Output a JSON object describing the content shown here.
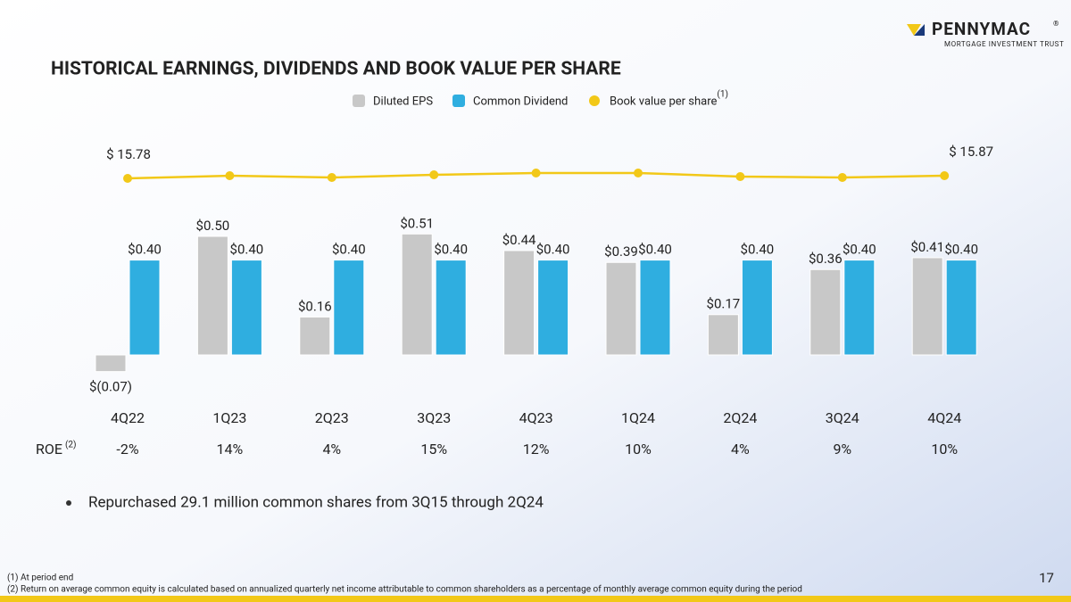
{
  "logo": {
    "name": "PENNYMAC",
    "registered": "®",
    "tagline": "MORTGAGE INVESTMENT TRUST"
  },
  "chart_data": {
    "type": "bar",
    "title": "HISTORICAL EARNINGS, DIVIDENDS AND BOOK VALUE PER SHARE",
    "categories": [
      "4Q22",
      "1Q23",
      "2Q23",
      "3Q23",
      "4Q23",
      "1Q24",
      "2Q24",
      "3Q24",
      "4Q24"
    ],
    "series": [
      {
        "name": "Diluted EPS",
        "type": "bar",
        "color": "#c8c8c8",
        "values": [
          -0.07,
          0.5,
          0.16,
          0.51,
          0.44,
          0.39,
          0.17,
          0.36,
          0.41
        ],
        "value_labels": [
          "$(0.07)",
          "$0.50",
          "$0.16",
          "$0.51",
          "$0.44",
          "$0.39",
          "$0.17",
          "$0.36",
          "$0.41"
        ]
      },
      {
        "name": "Common Dividend",
        "type": "bar",
        "color": "#2faee0",
        "values": [
          0.4,
          0.4,
          0.4,
          0.4,
          0.4,
          0.4,
          0.4,
          0.4,
          0.4
        ],
        "value_labels": [
          "$0.40",
          "$0.40",
          "$0.40",
          "$0.40",
          "$0.40",
          "$0.40",
          "$0.40",
          "$0.40",
          "$0.40"
        ]
      },
      {
        "name": "Book value per share",
        "name_note": "(1)",
        "type": "line",
        "axis": "y2",
        "color": "#f2c818",
        "values": [
          15.78,
          15.87,
          15.81,
          15.9,
          15.96,
          15.96,
          15.84,
          15.81,
          15.87
        ],
        "value_labels": [
          "$ 15.78",
          null,
          null,
          null,
          null,
          null,
          null,
          null,
          "$ 15.87"
        ]
      }
    ]
  },
  "roe": {
    "label": "ROE",
    "label_note": "(2)",
    "values": [
      "-2%",
      "14%",
      "4%",
      "15%",
      "12%",
      "10%",
      "4%",
      "9%",
      "10%"
    ]
  },
  "bullets": [
    "Repurchased 29.1 million common shares from 3Q15 through 2Q24"
  ],
  "footnotes": [
    "(1) At period end",
    "(2) Return on average common equity is calculated based on annualized quarterly net income attributable to common shareholders as a percentage of monthly average common equity during the period"
  ],
  "page_number": "17"
}
